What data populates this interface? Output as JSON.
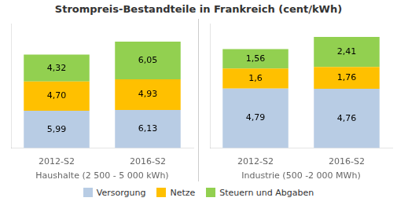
{
  "chart_data": [
    {
      "type": "bar",
      "title": "Strompreis-Bestandteile in Frankreich (cent/kWh)",
      "xlabel": "Haushalte (2 500 - 5 000 kWh)",
      "categories": [
        "2012-S2",
        "2016-S2"
      ],
      "series": [
        {
          "name": "Versorgung",
          "color": "#b8cce4",
          "values": [
            5.99,
            6.13
          ],
          "value_labels": [
            "5,99",
            "6,13"
          ]
        },
        {
          "name": "Netze",
          "color": "#ffc000",
          "values": [
            4.7,
            4.93
          ],
          "value_labels": [
            "4,70",
            "4,93"
          ]
        },
        {
          "name": "Steuern und Abgaben",
          "color": "#92d050",
          "values": [
            4.32,
            6.05
          ],
          "value_labels": [
            "4,32",
            "6,05"
          ]
        }
      ],
      "stacked": true,
      "data_labels": true,
      "ylim": [
        0,
        20
      ],
      "grid": false,
      "tick_labels": "x",
      "legend": "bottom"
    },
    {
      "type": "bar",
      "xlabel": "Industrie (500 -2 000 MWh)",
      "categories": [
        "2012-S2",
        "2016-S2"
      ],
      "series": [
        {
          "name": "Versorgung",
          "color": "#b8cce4",
          "values": [
            4.79,
            4.76
          ],
          "value_labels": [
            "4,79",
            "4,76"
          ]
        },
        {
          "name": "Netze",
          "color": "#ffc000",
          "values": [
            1.6,
            1.76
          ],
          "value_labels": [
            "1,6",
            "1,76"
          ]
        },
        {
          "name": "Steuern und Abgaben",
          "color": "#92d050",
          "values": [
            1.56,
            2.41
          ],
          "value_labels": [
            "1,56",
            "2,41"
          ]
        }
      ],
      "stacked": true,
      "data_labels": true,
      "ylim": [
        0,
        10
      ],
      "grid": false,
      "tick_labels": "x",
      "legend": "bottom"
    }
  ]
}
